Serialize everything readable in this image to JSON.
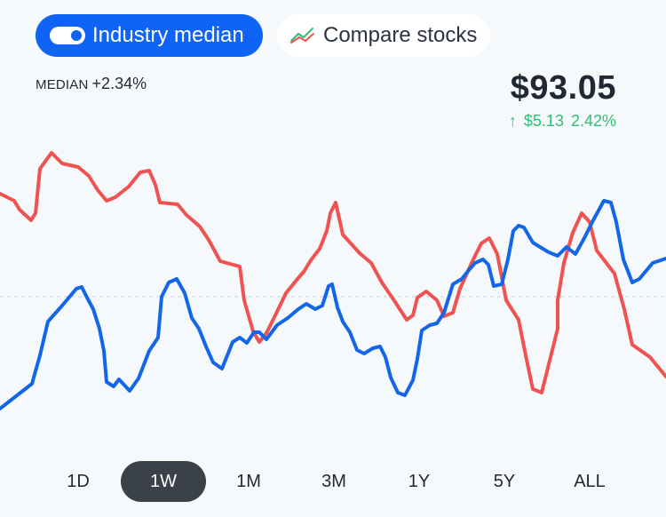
{
  "toggle": {
    "median_label": "Industry median",
    "compare_label": "Compare stocks"
  },
  "median": {
    "label": "MEDIAN",
    "value": "+2.34%"
  },
  "quote": {
    "price": "$93.05",
    "change_arrow": "↑",
    "change_abs": "$5.13",
    "change_pct": "2.42%"
  },
  "colors": {
    "accent": "#0f63f5",
    "stock_line": "#1466e8",
    "median_line": "#ef5350",
    "positive": "#2fbf71",
    "active_tab_bg": "#3a4148"
  },
  "icons": {
    "toggle": "toggle-switch-icon",
    "compare": "compare-lines-icon",
    "change": "arrow-up-icon"
  },
  "timeframes": {
    "options": [
      "1D",
      "1W",
      "1M",
      "3M",
      "1Y",
      "5Y",
      "ALL"
    ],
    "selected": "1W"
  },
  "chart_data": {
    "type": "line",
    "baseline": "dashed",
    "grid": false,
    "series": [
      {
        "color": "#ef5350",
        "values": [
          [
            0,
            48
          ],
          [
            16,
            56
          ],
          [
            22,
            66
          ],
          [
            35,
            78
          ],
          [
            40,
            70
          ],
          [
            45,
            20
          ],
          [
            58,
            2
          ],
          [
            70,
            14
          ],
          [
            88,
            18
          ],
          [
            100,
            28
          ],
          [
            110,
            44
          ],
          [
            120,
            56
          ],
          [
            130,
            52
          ],
          [
            145,
            40
          ],
          [
            158,
            24
          ],
          [
            168,
            22
          ],
          [
            175,
            38
          ],
          [
            180,
            58
          ],
          [
            200,
            60
          ],
          [
            210,
            72
          ],
          [
            225,
            85
          ],
          [
            235,
            100
          ],
          [
            248,
            124
          ],
          [
            270,
            130
          ],
          [
            275,
            168
          ],
          [
            285,
            203
          ],
          [
            292,
            215
          ],
          [
            300,
            205
          ],
          [
            310,
            185
          ],
          [
            322,
            160
          ],
          [
            335,
            144
          ],
          [
            342,
            136
          ],
          [
            350,
            123
          ],
          [
            360,
            110
          ],
          [
            368,
            90
          ],
          [
            372,
            70
          ],
          [
            378,
            58
          ],
          [
            386,
            94
          ],
          [
            395,
            104
          ],
          [
            405,
            115
          ],
          [
            418,
            126
          ],
          [
            430,
            148
          ],
          [
            445,
            170
          ],
          [
            458,
            190
          ],
          [
            465,
            185
          ],
          [
            470,
            165
          ],
          [
            480,
            158
          ],
          [
            492,
            168
          ],
          [
            500,
            186
          ],
          [
            510,
            182
          ],
          [
            518,
            155
          ],
          [
            532,
            124
          ],
          [
            542,
            104
          ],
          [
            551,
            98
          ],
          [
            560,
            116
          ],
          [
            565,
            142
          ],
          [
            570,
            168
          ],
          [
            584,
            190
          ],
          [
            592,
            230
          ],
          [
            600,
            268
          ],
          [
            610,
            272
          ],
          [
            618,
            240
          ],
          [
            628,
            200
          ],
          [
            628,
            168
          ],
          [
            635,
            126
          ],
          [
            645,
            92
          ],
          [
            655,
            70
          ],
          [
            664,
            80
          ],
          [
            672,
            112
          ],
          [
            692,
            138
          ],
          [
            703,
            178
          ],
          [
            712,
            218
          ],
          [
            732,
            232
          ],
          [
            750,
            254
          ]
        ]
      },
      {
        "color": "#1466e8",
        "values": [
          [
            0,
            290
          ],
          [
            18,
            276
          ],
          [
            36,
            262
          ],
          [
            45,
            230
          ],
          [
            54,
            192
          ],
          [
            70,
            174
          ],
          [
            86,
            155
          ],
          [
            92,
            153
          ],
          [
            98,
            165
          ],
          [
            105,
            178
          ],
          [
            112,
            200
          ],
          [
            117,
            225
          ],
          [
            120,
            260
          ],
          [
            128,
            265
          ],
          [
            134,
            257
          ],
          [
            146,
            270
          ],
          [
            156,
            256
          ],
          [
            168,
            225
          ],
          [
            178,
            210
          ],
          [
            182,
            164
          ],
          [
            190,
            148
          ],
          [
            199,
            144
          ],
          [
            208,
            160
          ],
          [
            216,
            188
          ],
          [
            224,
            200
          ],
          [
            232,
            220
          ],
          [
            240,
            238
          ],
          [
            250,
            245
          ],
          [
            256,
            230
          ],
          [
            262,
            215
          ],
          [
            270,
            210
          ],
          [
            278,
            216
          ],
          [
            286,
            204
          ],
          [
            292,
            204
          ],
          [
            300,
            212
          ],
          [
            312,
            196
          ],
          [
            324,
            188
          ],
          [
            336,
            178
          ],
          [
            345,
            172
          ],
          [
            355,
            178
          ],
          [
            363,
            174
          ],
          [
            370,
            152
          ],
          [
            374,
            150
          ],
          [
            380,
            176
          ],
          [
            386,
            192
          ],
          [
            394,
            204
          ],
          [
            402,
            224
          ],
          [
            410,
            228
          ],
          [
            420,
            222
          ],
          [
            428,
            220
          ],
          [
            434,
            232
          ],
          [
            440,
            255
          ],
          [
            448,
            272
          ],
          [
            456,
            275
          ],
          [
            465,
            258
          ],
          [
            470,
            234
          ],
          [
            475,
            202
          ],
          [
            484,
            196
          ],
          [
            492,
            194
          ],
          [
            500,
            182
          ],
          [
            510,
            150
          ],
          [
            520,
            144
          ],
          [
            528,
            134
          ],
          [
            535,
            126
          ],
          [
            544,
            122
          ],
          [
            550,
            128
          ],
          [
            556,
            152
          ],
          [
            565,
            150
          ],
          [
            572,
            122
          ],
          [
            578,
            90
          ],
          [
            584,
            84
          ],
          [
            590,
            86
          ],
          [
            600,
            103
          ],
          [
            608,
            108
          ],
          [
            618,
            114
          ],
          [
            628,
            118
          ],
          [
            638,
            108
          ],
          [
            648,
            116
          ],
          [
            658,
            98
          ],
          [
            668,
            78
          ],
          [
            680,
            56
          ],
          [
            688,
            58
          ],
          [
            694,
            80
          ],
          [
            702,
            122
          ],
          [
            712,
            148
          ],
          [
            720,
            144
          ],
          [
            735,
            126
          ],
          [
            750,
            121
          ]
        ]
      }
    ]
  }
}
